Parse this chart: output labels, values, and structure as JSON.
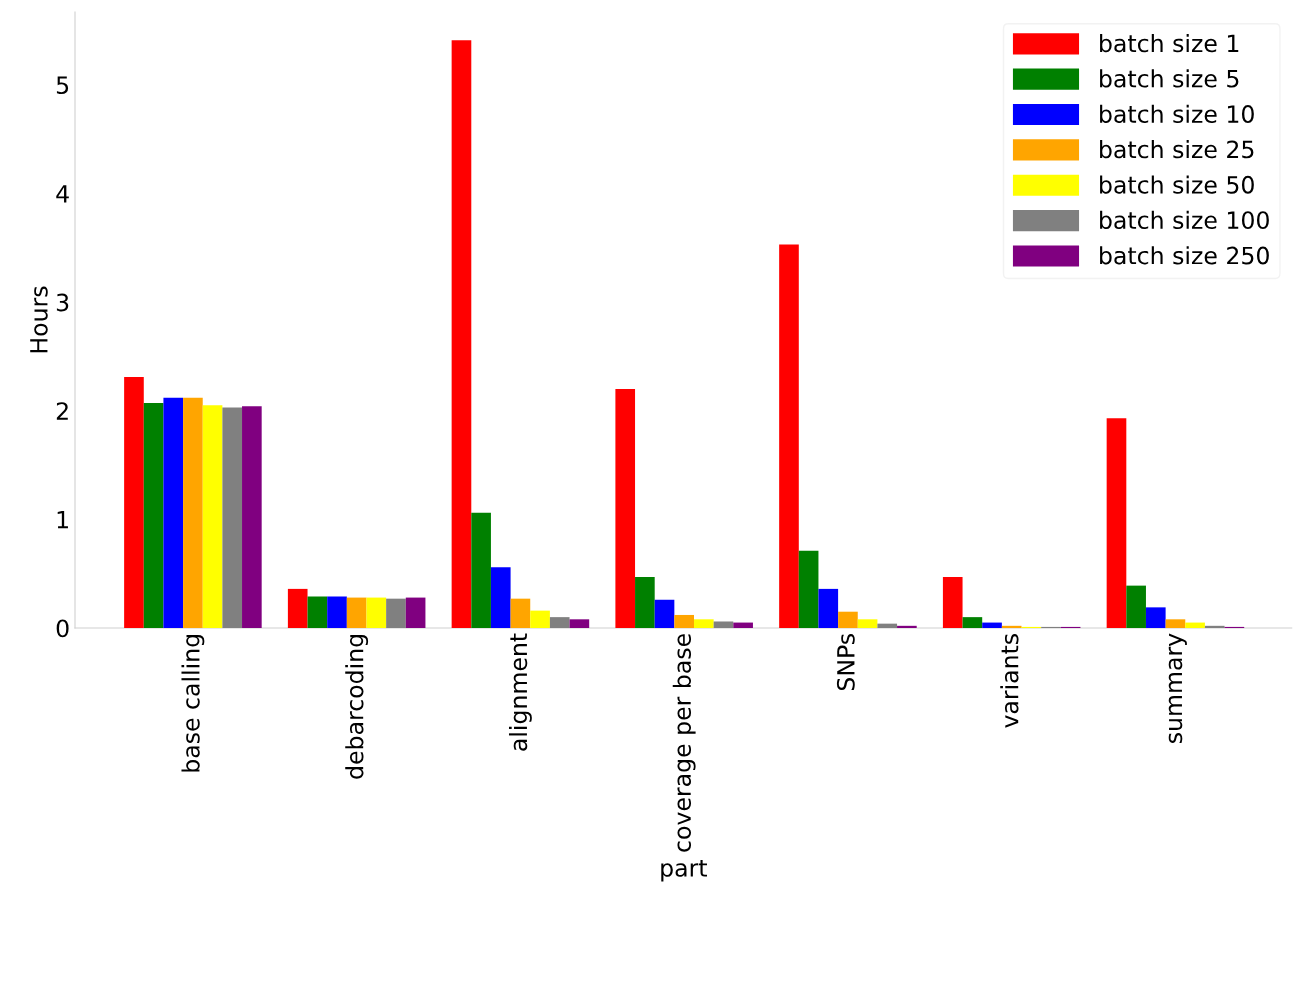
{
  "chart_data": {
    "type": "bar",
    "xlabel": "part",
    "ylabel": "Hours",
    "categories": [
      "base calling",
      "debarcoding",
      "alignment",
      "coverage per base",
      "SNPs",
      "variants",
      "summary"
    ],
    "series": [
      {
        "name": "batch size 1",
        "color": "#ff0000",
        "values": [
          2.31,
          0.36,
          5.41,
          2.2,
          3.53,
          0.47,
          1.93
        ]
      },
      {
        "name": "batch size 5",
        "color": "#008000",
        "values": [
          2.07,
          0.29,
          1.06,
          0.47,
          0.71,
          0.1,
          0.39
        ]
      },
      {
        "name": "batch size 10",
        "color": "#0000ff",
        "values": [
          2.12,
          0.29,
          0.56,
          0.26,
          0.36,
          0.05,
          0.19
        ]
      },
      {
        "name": "batch size 25",
        "color": "#ffa500",
        "values": [
          2.12,
          0.28,
          0.27,
          0.12,
          0.15,
          0.02,
          0.08
        ]
      },
      {
        "name": "batch size 50",
        "color": "#ffff00",
        "values": [
          2.05,
          0.28,
          0.16,
          0.08,
          0.08,
          0.01,
          0.05
        ]
      },
      {
        "name": "batch size 100",
        "color": "#808080",
        "values": [
          2.03,
          0.27,
          0.1,
          0.06,
          0.04,
          0.01,
          0.02
        ]
      },
      {
        "name": "batch size 250",
        "color": "#800080",
        "values": [
          2.04,
          0.28,
          0.08,
          0.05,
          0.02,
          0.01,
          0.01
        ]
      }
    ],
    "ylim": [
      0,
      5.67
    ],
    "yticks": [
      0,
      1,
      2,
      3,
      4,
      5
    ],
    "grid": false,
    "legend": "top right"
  }
}
